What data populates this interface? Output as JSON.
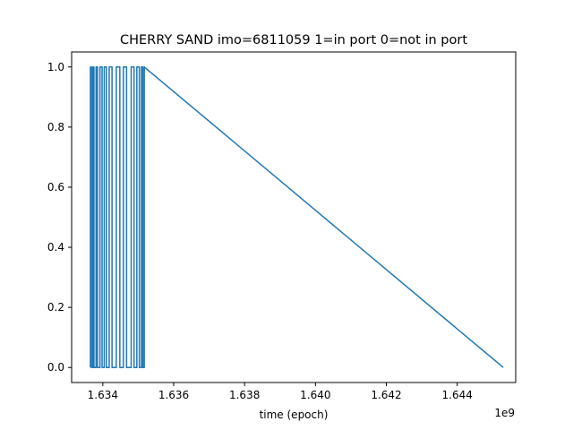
{
  "chart_data": {
    "type": "line",
    "title": "CHERRY SAND imo=6811059 1=in port 0=not in port",
    "xlabel": "time (epoch)",
    "ylabel": "",
    "x_offset_label": "1e9",
    "xlim": [
      1.63312,
      1.64565
    ],
    "ylim": [
      -0.05,
      1.05
    ],
    "x_ticks": [
      1.634,
      1.636,
      1.638,
      1.64,
      1.642,
      1.644
    ],
    "x_tick_labels": [
      "1.634",
      "1.636",
      "1.638",
      "1.640",
      "1.642",
      "1.644"
    ],
    "y_ticks": [
      0.0,
      0.2,
      0.4,
      0.6,
      0.8,
      1.0
    ],
    "y_tick_labels": [
      "0.0",
      "0.2",
      "0.4",
      "0.6",
      "0.8",
      "1.0"
    ],
    "grid": false,
    "legend": "none",
    "series": [
      {
        "color": "#1f77b4",
        "x": [
          1.63365,
          1.63365,
          1.63368,
          1.63368,
          1.63372,
          1.63372,
          1.63375,
          1.63375,
          1.63381,
          1.63381,
          1.63385,
          1.63385,
          1.63392,
          1.63392,
          1.63398,
          1.63398,
          1.63404,
          1.63404,
          1.6341,
          1.6341,
          1.63418,
          1.63418,
          1.63426,
          1.63426,
          1.63438,
          1.63438,
          1.63448,
          1.63448,
          1.63458,
          1.63458,
          1.63467,
          1.63467,
          1.6348,
          1.6348,
          1.63488,
          1.63488,
          1.63496,
          1.63496,
          1.63503,
          1.63503,
          1.63509,
          1.63509,
          1.63513,
          1.63513,
          1.63517,
          1.63517,
          1.6453
        ],
        "y": [
          0,
          1,
          1,
          0,
          0,
          1,
          1,
          0,
          0,
          1,
          1,
          0,
          0,
          1,
          1,
          0,
          0,
          1,
          1,
          0,
          0,
          1,
          1,
          0,
          0,
          1,
          1,
          0,
          0,
          1,
          1,
          0,
          0,
          1,
          1,
          0,
          0,
          1,
          1,
          0,
          0,
          1,
          1,
          0,
          0,
          1,
          0
        ]
      }
    ]
  }
}
